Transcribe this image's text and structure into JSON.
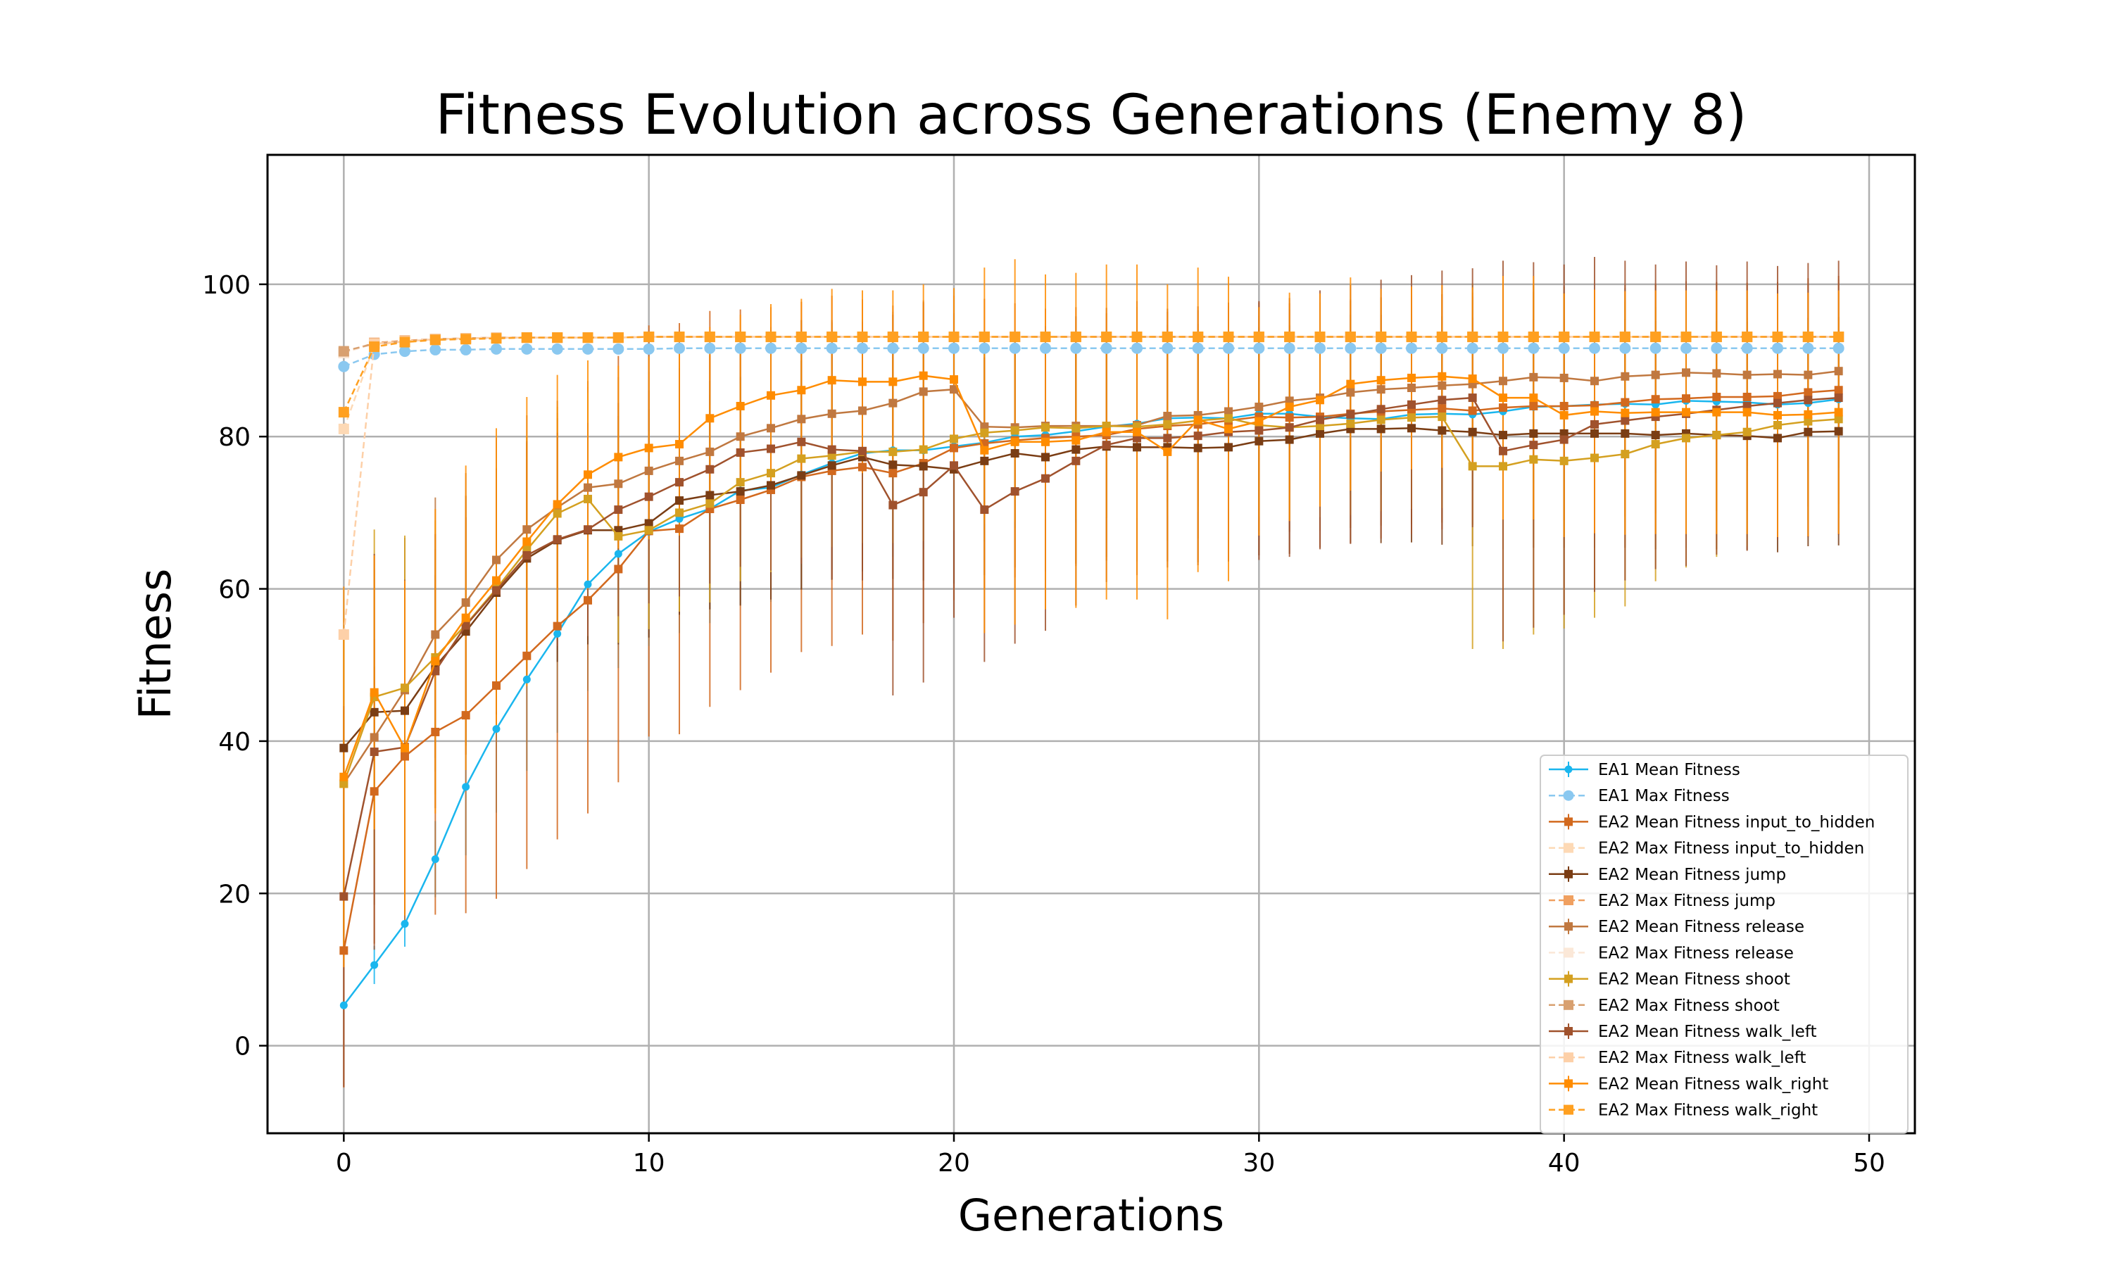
{
  "chart_data": {
    "type": "line",
    "title": "Fitness Evolution across Generations (Enemy 8)",
    "xlabel": "Generations",
    "ylabel": "Fitness",
    "xlim": [
      -2.5,
      51.5
    ],
    "ylim": [
      -11.5,
      117
    ],
    "xticks": [
      0,
      10,
      20,
      30,
      40,
      50
    ],
    "yticks": [
      0,
      20,
      40,
      60,
      80,
      100
    ],
    "grid": true,
    "legend_position": "lower-right",
    "series": [
      {
        "name": "EA1 Mean Fitness",
        "color": "#1ab6ee",
        "marker": "circle",
        "dashed": false,
        "error": true,
        "values": [
          5.3,
          10.6,
          16,
          24.5,
          34,
          41.6,
          48.1,
          54.1,
          60.6,
          64.6,
          67.5,
          69.2,
          70.5,
          72.9,
          73.3,
          75,
          76.5,
          77.8,
          78.2,
          78.2,
          78.7,
          79.2,
          80,
          80.2,
          80.7,
          81.3,
          81.7,
          82.4,
          82.5,
          82.4,
          83,
          83,
          82.6,
          82.4,
          82.3,
          82.9,
          83,
          82.9,
          83.3,
          83.9,
          84,
          84.2,
          84.3,
          84.2,
          84.7,
          84.6,
          84.5,
          84.2,
          84.4,
          84.9
        ],
        "err": [
          0,
          2.5,
          3,
          5,
          9,
          11,
          12,
          13,
          14,
          15,
          15,
          15,
          15,
          15,
          15,
          15,
          14,
          14,
          14,
          13,
          13,
          13,
          12,
          12,
          12,
          12,
          12,
          11,
          11,
          11,
          11,
          10,
          10,
          10,
          10,
          10,
          10,
          10,
          10,
          10,
          10,
          9,
          9,
          9,
          9,
          9,
          9,
          9,
          9,
          9
        ]
      },
      {
        "name": "EA1 Max Fitness",
        "color": "#8ac8f0",
        "marker": "circle",
        "dashed": true,
        "error": false,
        "values": [
          89.2,
          90.8,
          91.2,
          91.4,
          91.4,
          91.5,
          91.5,
          91.5,
          91.5,
          91.5,
          91.5,
          91.6,
          91.6,
          91.6,
          91.6,
          91.6,
          91.6,
          91.6,
          91.6,
          91.6,
          91.6,
          91.6,
          91.6,
          91.6,
          91.6,
          91.6,
          91.6,
          91.6,
          91.6,
          91.6,
          91.6,
          91.6,
          91.6,
          91.6,
          91.6,
          91.6,
          91.6,
          91.6,
          91.6,
          91.6,
          91.6,
          91.6,
          91.6,
          91.6,
          91.6,
          91.6,
          91.6,
          91.6,
          91.6,
          91.6
        ]
      },
      {
        "name": "EA2 Mean Fitness input_to_hidden",
        "color": "#d2691e",
        "marker": "square",
        "dashed": false,
        "error": true,
        "values": [
          12.5,
          33.4,
          38,
          41.2,
          43.4,
          47.3,
          51.2,
          55.1,
          58.5,
          62.6,
          67.6,
          67.9,
          70.5,
          71.7,
          73,
          74.7,
          75.5,
          76,
          75.2,
          76.5,
          78.5,
          79.1,
          79.5,
          79.8,
          80,
          80.2,
          81,
          81.4,
          81.6,
          82.1,
          82.6,
          82.5,
          82.6,
          83,
          83.3,
          83.5,
          83.7,
          83.4,
          83.8,
          84,
          84,
          84.1,
          84.5,
          84.9,
          85,
          85.2,
          85.2,
          85.3,
          85.8,
          86.1
        ],
        "err": [
          18,
          20,
          22,
          24,
          26,
          28,
          28,
          28,
          28,
          28,
          27,
          27,
          26,
          25,
          24,
          23,
          23,
          22,
          22,
          21,
          20,
          19,
          18,
          17,
          17,
          16,
          16,
          15,
          15,
          15,
          15,
          15,
          15,
          15,
          15,
          15,
          15,
          15,
          15,
          15,
          15,
          15,
          15,
          15,
          15,
          15,
          15,
          15,
          15,
          15
        ]
      },
      {
        "name": "EA2 Max Fitness input_to_hidden",
        "color": "#fdd9b5",
        "marker": "square",
        "dashed": true,
        "error": false,
        "values": [
          81,
          92,
          92.5,
          92.8,
          92.9,
          93,
          93,
          93,
          93,
          93,
          93.1,
          93.1,
          93.1,
          93.1,
          93.1,
          93.1,
          93.1,
          93.1,
          93.1,
          93.1,
          93.1,
          93.1,
          93.1,
          93.1,
          93.1,
          93.1,
          93.1,
          93.1,
          93.1,
          93.1,
          93.1,
          93.1,
          93.1,
          93.1,
          93.1,
          93.1,
          93.1,
          93.1,
          93.1,
          93.1,
          93.1,
          93.1,
          93.1,
          93.1,
          93.1,
          93.1,
          93.1,
          93.1,
          93.1,
          93.1
        ]
      },
      {
        "name": "EA2 Mean Fitness jump",
        "color": "#7a3d14",
        "marker": "square",
        "dashed": false,
        "error": true,
        "values": [
          39.1,
          43.8,
          44,
          49.8,
          54.4,
          59.5,
          64,
          66.4,
          67.7,
          67.7,
          68.6,
          71.6,
          72.3,
          72.8,
          73.6,
          74.9,
          76.2,
          77.3,
          76.3,
          76.1,
          75.7,
          76.8,
          77.8,
          77.3,
          78.3,
          78.7,
          78.6,
          78.6,
          78.5,
          78.6,
          79.4,
          79.6,
          80.4,
          81,
          81,
          81.1,
          80.8,
          80.6,
          80.2,
          80.4,
          80.4,
          80.4,
          80.4,
          80.2,
          80.4,
          80.2,
          80.1,
          79.8,
          80.6,
          80.7
        ],
        "err": [
          5,
          6,
          8,
          12,
          15,
          16,
          16,
          16,
          15,
          15,
          15,
          15,
          15,
          15,
          15,
          15,
          15,
          15,
          15,
          15,
          15,
          15,
          15,
          15,
          15,
          15,
          15,
          15,
          15,
          15,
          15,
          15,
          15,
          15,
          15,
          15,
          15,
          15,
          15,
          15,
          15,
          15,
          15,
          15,
          15,
          15,
          15,
          15,
          15,
          15
        ]
      },
      {
        "name": "EA2 Max Fitness jump",
        "color": "#f0a060",
        "marker": "square",
        "dashed": true,
        "error": false,
        "values": [
          91,
          92.3,
          92.6,
          92.8,
          92.9,
          93,
          93,
          93,
          93,
          93,
          93.1,
          93.1,
          93.1,
          93.1,
          93.1,
          93.1,
          93.1,
          93.1,
          93.1,
          93.1,
          93.1,
          93.1,
          93.1,
          93.1,
          93.1,
          93.1,
          93.1,
          93.1,
          93.1,
          93.1,
          93.1,
          93.1,
          93.1,
          93.1,
          93.1,
          93.1,
          93.1,
          93.1,
          93.1,
          93.1,
          93.1,
          93.1,
          93.1,
          93.1,
          93.1,
          93.1,
          93.1,
          93.1,
          93.1,
          93.1
        ]
      },
      {
        "name": "EA2 Mean Fitness release",
        "color": "#c07840",
        "marker": "square",
        "dashed": false,
        "error": true,
        "values": [
          34.4,
          40.5,
          46.7,
          54,
          58.2,
          63.8,
          67.8,
          70.7,
          73.3,
          73.8,
          75.5,
          76.8,
          78,
          80,
          81.1,
          82.3,
          83,
          83.4,
          84.4,
          85.9,
          86.2,
          81.3,
          81.2,
          81.4,
          81.4,
          81.4,
          81.5,
          82.7,
          82.8,
          83.3,
          83.9,
          84.7,
          85.1,
          85.8,
          86.2,
          86.4,
          86.7,
          86.9,
          87.3,
          87.8,
          87.7,
          87.3,
          87.9,
          88.1,
          88.4,
          88.3,
          88.1,
          88.2,
          88.1,
          88.6
        ],
        "err": [
          20,
          22,
          20,
          18,
          17,
          16,
          15,
          14,
          14,
          14,
          13,
          13,
          13,
          13,
          13,
          13,
          12,
          12,
          12,
          12,
          12,
          12,
          12,
          12,
          12,
          12,
          12,
          12,
          12,
          12,
          12,
          12,
          12,
          12,
          12,
          12,
          12,
          12,
          12,
          12,
          12,
          12,
          12,
          12,
          12,
          12,
          12,
          12,
          12,
          12
        ]
      },
      {
        "name": "EA2 Max Fitness release",
        "color": "#fbe8d8",
        "marker": "square",
        "dashed": true,
        "error": false,
        "values": [
          91,
          92.2,
          92.5,
          92.7,
          92.8,
          92.9,
          93,
          93,
          93,
          93,
          93.1,
          93.1,
          93.1,
          93.1,
          93.1,
          93.1,
          93.1,
          93.1,
          93.1,
          93.1,
          93.1,
          93.1,
          93.1,
          93.1,
          93.1,
          93.1,
          93.1,
          93.1,
          93.1,
          93.1,
          93.1,
          93.1,
          93.1,
          93.1,
          93.1,
          93.1,
          93.1,
          93.1,
          93.1,
          93.1,
          93.1,
          93.1,
          93.1,
          93.1,
          93.1,
          93.1,
          93.1,
          93.1,
          93.1,
          93.1
        ]
      },
      {
        "name": "EA2 Mean Fitness shoot",
        "color": "#d4a020",
        "marker": "square",
        "dashed": false,
        "error": true,
        "values": [
          34.4,
          45.8,
          47,
          51,
          55.3,
          60,
          65.1,
          69.9,
          71.8,
          66.9,
          67.7,
          70,
          71.2,
          74,
          75.2,
          77.1,
          77.5,
          78,
          78,
          78.3,
          79.7,
          80.5,
          80.8,
          81.2,
          81.1,
          81.4,
          81.3,
          81.6,
          82.1,
          82.4,
          81.5,
          81.2,
          81.4,
          81.7,
          82.2,
          82.5,
          82.6,
          76.1,
          76.1,
          77,
          76.8,
          77.2,
          77.7,
          79,
          79.8,
          80.2,
          80.6,
          81.5,
          82,
          82.3
        ],
        "err": [
          20,
          22,
          20,
          18,
          17,
          16,
          15,
          14,
          14,
          14,
          13,
          13,
          13,
          13,
          13,
          13,
          12,
          12,
          12,
          12,
          12,
          12,
          12,
          12,
          12,
          12,
          12,
          12,
          12,
          12,
          12,
          12,
          12,
          12,
          12,
          12,
          12,
          24,
          24,
          23,
          22,
          21,
          20,
          18,
          17,
          16,
          15,
          14,
          13,
          13
        ]
      },
      {
        "name": "EA2 Max Fitness shoot",
        "color": "#d8a070",
        "marker": "square",
        "dashed": true,
        "error": false,
        "values": [
          91.2,
          92.2,
          92.5,
          92.8,
          92.9,
          93,
          93,
          93,
          93,
          93,
          93.1,
          93.1,
          93.1,
          93.1,
          93.1,
          93.1,
          93.1,
          93.1,
          93.1,
          93.1,
          93.1,
          93.1,
          93.1,
          93.1,
          93.1,
          93.1,
          93.1,
          93.1,
          93.1,
          93.1,
          93.1,
          93.1,
          93.1,
          93.1,
          93.1,
          93.1,
          93.1,
          93.1,
          93.1,
          93.1,
          93.1,
          93.1,
          93.1,
          93.1,
          93.1,
          93.1,
          93.1,
          93.1,
          93.1,
          93.1
        ]
      },
      {
        "name": "EA2 Mean Fitness walk_left",
        "color": "#a0522d",
        "marker": "square",
        "dashed": false,
        "error": true,
        "values": [
          19.6,
          38.6,
          39.2,
          49.2,
          55.2,
          59.8,
          64.4,
          66.5,
          67.8,
          70.4,
          72.1,
          74,
          75.7,
          77.9,
          78.4,
          79.3,
          78.3,
          78.1,
          71,
          72.7,
          76.2,
          70.4,
          72.8,
          74.5,
          76.8,
          78.9,
          79.8,
          79.8,
          80.1,
          80.6,
          80.8,
          81.2,
          82.2,
          82.9,
          83.6,
          84.2,
          84.8,
          85.1,
          78.1,
          78.9,
          79.6,
          81.6,
          82.1,
          82.6,
          83,
          83.5,
          84,
          84.4,
          84.8,
          85.1
        ],
        "err": [
          25,
          26,
          22,
          18,
          17,
          16,
          15,
          14,
          14,
          14,
          14,
          15,
          15,
          15,
          16,
          16,
          17,
          17,
          25,
          25,
          20,
          20,
          20,
          20,
          19,
          18,
          18,
          17,
          17,
          17,
          17,
          17,
          17,
          17,
          17,
          17,
          17,
          17,
          25,
          24,
          23,
          22,
          21,
          20,
          20,
          19,
          19,
          18,
          18,
          18
        ]
      },
      {
        "name": "EA2 Max Fitness walk_left",
        "color": "#fdd0a8",
        "marker": "square",
        "dashed": true,
        "error": false,
        "values": [
          54,
          92.2,
          92.5,
          92.8,
          92.9,
          93,
          93,
          93,
          93,
          93,
          93.1,
          93.1,
          93.1,
          93.1,
          93.1,
          93.1,
          93.1,
          93.1,
          93.1,
          93.1,
          93.1,
          93.1,
          93.1,
          93.1,
          93.1,
          93.1,
          93.1,
          93.1,
          93.1,
          93.1,
          93.1,
          93.1,
          93.1,
          93.1,
          93.1,
          93.1,
          93.1,
          93.1,
          93.1,
          93.1,
          93.1,
          93.1,
          93.1,
          93.1,
          93.1,
          93.1,
          93.1,
          93.1,
          93.1,
          93.1
        ]
      },
      {
        "name": "EA2 Mean Fitness walk_right",
        "color": "#ff8c00",
        "marker": "square",
        "dashed": false,
        "error": true,
        "values": [
          35.3,
          46.4,
          39.1,
          50.5,
          56.2,
          61.1,
          66.2,
          71.1,
          75,
          77.3,
          78.5,
          79,
          82.4,
          84,
          85.4,
          86.1,
          87.4,
          87.2,
          87.2,
          88,
          87.5,
          78.2,
          79.3,
          79.3,
          79.5,
          80.6,
          80.6,
          78,
          82.2,
          81,
          82,
          83.9,
          84.8,
          86.9,
          87.4,
          87.7,
          87.9,
          87.6,
          85.1,
          85.1,
          82.8,
          83.3,
          83.1,
          83.2,
          83.2,
          83.2,
          83.2,
          82.8,
          82.9,
          83.2
        ],
        "err": [
          25,
          18,
          22,
          20,
          20,
          20,
          19,
          17,
          15,
          12,
          12,
          12,
          12,
          12,
          12,
          12,
          12,
          12,
          12,
          12,
          12,
          24,
          24,
          22,
          22,
          22,
          22,
          22,
          20,
          20,
          15,
          15,
          14,
          14,
          12,
          12,
          12,
          12,
          16,
          16,
          16,
          16,
          16,
          16,
          16,
          16,
          16,
          16,
          16,
          16
        ]
      },
      {
        "name": "EA2 Max Fitness walk_right",
        "color": "#ffa020",
        "marker": "square",
        "dashed": true,
        "error": false,
        "values": [
          83.2,
          91.8,
          92.4,
          92.7,
          92.8,
          92.9,
          93,
          93,
          93,
          93,
          93.1,
          93.1,
          93.1,
          93.1,
          93.1,
          93.1,
          93.1,
          93.1,
          93.1,
          93.1,
          93.1,
          93.1,
          93.1,
          93.1,
          93.1,
          93.1,
          93.1,
          93.1,
          93.1,
          93.1,
          93.1,
          93.1,
          93.1,
          93.1,
          93.1,
          93.1,
          93.1,
          93.1,
          93.1,
          93.1,
          93.1,
          93.1,
          93.1,
          93.1,
          93.1,
          93.1,
          93.1,
          93.1,
          93.1,
          93.1
        ]
      }
    ]
  }
}
